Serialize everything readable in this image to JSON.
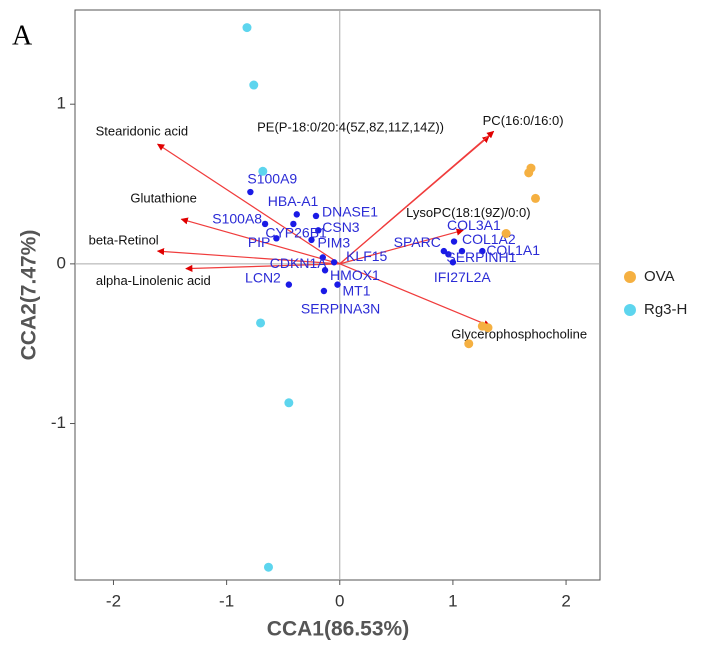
{
  "chart_data": {
    "type": "biplot",
    "panel_label": "A",
    "x_label": "CCA1(86.53%)",
    "y_label": "CCA2(7.47%)",
    "xlim": [
      -2.34,
      2.3
    ],
    "ylim": [
      -1.98,
      1.59
    ],
    "xticks": [
      -2,
      -1,
      0,
      1,
      2
    ],
    "yticks": [
      -1,
      0,
      1
    ],
    "legend": "right",
    "series": [
      {
        "name": "OVA",
        "color": "#f5b041",
        "x": [
          1.69,
          1.67,
          1.73,
          1.47,
          1.26,
          1.31,
          1.14
        ],
        "values": [
          0.6,
          0.57,
          0.41,
          0.19,
          -0.39,
          -0.4,
          -0.5
        ]
      },
      {
        "name": "Rg3-H",
        "color": "#5dd5ee",
        "x": [
          -0.82,
          -0.76,
          -0.68,
          -0.7,
          -0.45,
          -0.63
        ],
        "values": [
          1.48,
          1.12,
          0.58,
          -0.37,
          -0.87,
          -1.9
        ]
      }
    ],
    "genes": {
      "color": "#1a1ae6",
      "labels": [
        "S100A9",
        "HBA-A1",
        "DNASE1",
        "CSN3",
        "S100A8",
        "CYP26B1",
        "PIP",
        "PIM3",
        "CDKN1A",
        "KLF15",
        "HMOX1",
        "MT1",
        "LCN2",
        "SERPINA3N",
        "SPARC",
        "COL3A1",
        "COL1A2",
        "COL1A1",
        "SERPINH1",
        "IFI27L2A"
      ],
      "x": [
        -0.79,
        -0.38,
        -0.21,
        -0.19,
        -0.66,
        -0.41,
        -0.56,
        -0.25,
        -0.15,
        -0.05,
        -0.13,
        -0.02,
        -0.45,
        -0.14,
        0.92,
        1.01,
        1.08,
        1.26,
        0.96,
        1.0
      ],
      "values": [
        0.45,
        0.31,
        0.3,
        0.21,
        0.25,
        0.25,
        0.16,
        0.15,
        0.04,
        0.01,
        -0.04,
        -0.13,
        -0.13,
        -0.17,
        0.08,
        0.14,
        0.08,
        0.08,
        0.06,
        0.01
      ]
    },
    "arrows": {
      "color": "#f03c3c",
      "labels": [
        "Stearidonic acid",
        "Glutathione",
        "beta-Retinol",
        "alpha-Linolenic acid",
        "PE(P-18:0/20:4(5Z,8Z,11Z,14Z))",
        "PC(16:0/16:0)",
        "LysoPC(18:1(9Z)/0:0)",
        "Glycerophosphocholine"
      ],
      "x": [
        -1.61,
        -1.4,
        -1.61,
        -1.36,
        1.32,
        1.36,
        1.09,
        1.33
      ],
      "values": [
        0.75,
        0.28,
        0.08,
        -0.03,
        0.8,
        0.83,
        0.21,
        -0.39
      ]
    }
  }
}
